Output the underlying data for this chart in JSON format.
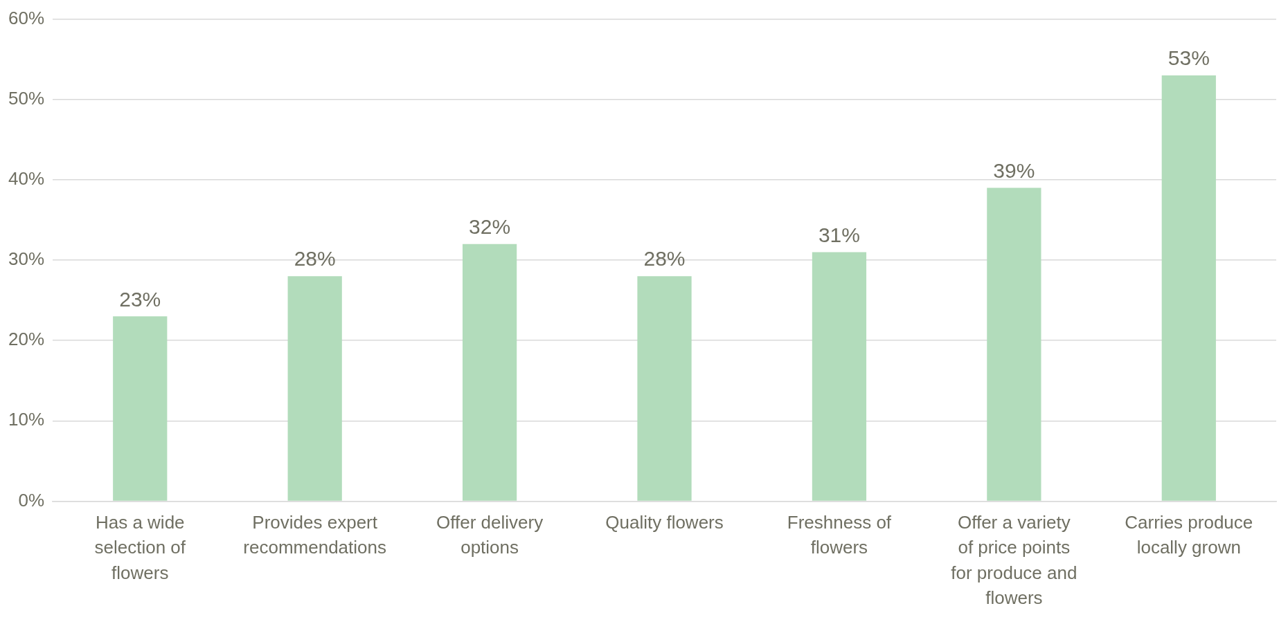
{
  "chart_data": {
    "type": "bar",
    "categories": [
      "Has a wide selection of flowers",
      "Provides expert recommendations",
      "Offer delivery options",
      "Quality flowers",
      "Freshness of flowers",
      "Offer a variety of price points for produce and flowers",
      "Carries produce locally grown"
    ],
    "values": [
      23,
      28,
      32,
      28,
      31,
      39,
      53
    ],
    "value_labels": [
      "23%",
      "28%",
      "32%",
      "28%",
      "31%",
      "39%",
      "53%"
    ],
    "color": "#b2dcbb",
    "ylim": [
      0,
      60
    ],
    "yticks": [
      {
        "value": 0,
        "label": "0%"
      },
      {
        "value": 10,
        "label": "10%"
      },
      {
        "value": 20,
        "label": "20%"
      },
      {
        "value": 30,
        "label": "30%"
      },
      {
        "value": 40,
        "label": "40%"
      },
      {
        "value": 50,
        "label": "50%"
      },
      {
        "value": 60,
        "label": "60%"
      }
    ],
    "grid": "y",
    "legend": false
  }
}
